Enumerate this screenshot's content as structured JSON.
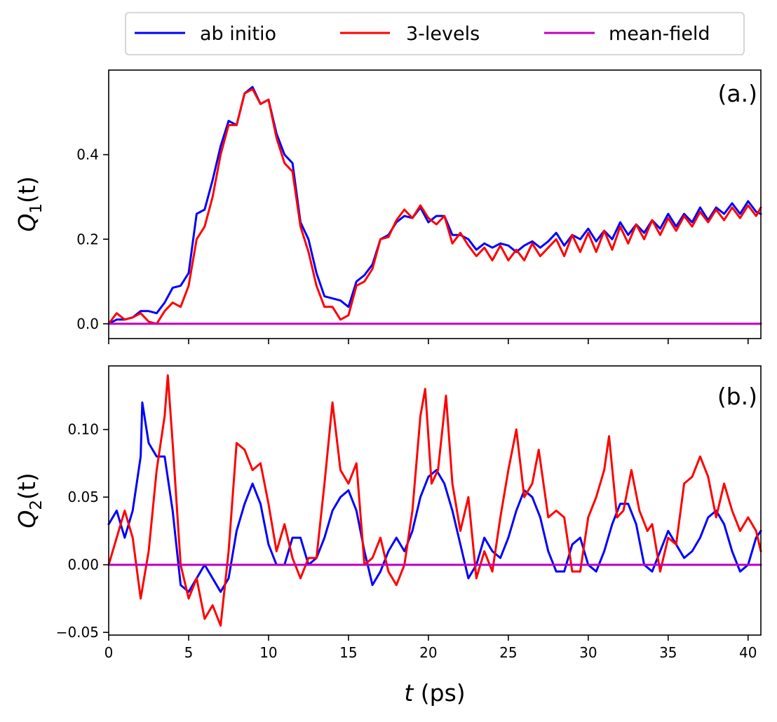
{
  "chart_data": [
    {
      "type": "line",
      "panel_label": "(a.)",
      "ylabel_base": "Q",
      "ylabel_sub": "1",
      "ylabel_arg": "(t)",
      "xlim": [
        0,
        40.8
      ],
      "ylim": [
        -0.035,
        0.6
      ],
      "yticks": [
        0.0,
        0.2,
        0.4
      ],
      "ytick_labels": [
        "0.0",
        "0.2",
        "0.4"
      ],
      "xticks": [
        0,
        5,
        10,
        15,
        20,
        25,
        30,
        35,
        40
      ],
      "series": [
        {
          "name": "ab initio",
          "color": "#0000ff",
          "x": [
            0,
            0.5,
            1,
            1.5,
            2,
            2.5,
            3,
            3.5,
            4,
            4.5,
            5,
            5.5,
            6,
            6.5,
            7,
            7.5,
            8,
            8.5,
            9,
            9.5,
            10,
            10.5,
            11,
            11.5,
            12,
            12.5,
            13,
            13.5,
            14,
            14.5,
            15,
            15.5,
            16,
            16.5,
            17,
            17.5,
            18,
            18.5,
            19,
            19.5,
            20,
            20.5,
            21,
            21.5,
            22,
            22.5,
            23,
            23.5,
            24,
            24.5,
            25,
            25.5,
            26,
            26.5,
            27,
            27.5,
            28,
            28.5,
            29,
            29.5,
            30,
            30.5,
            31,
            31.5,
            32,
            32.5,
            33,
            33.5,
            34,
            34.5,
            35,
            35.5,
            36,
            36.5,
            37,
            37.5,
            38,
            38.5,
            39,
            39.5,
            40,
            40.5,
            40.8
          ],
          "y": [
            0,
            0.01,
            0.01,
            0.015,
            0.03,
            0.03,
            0.025,
            0.05,
            0.085,
            0.09,
            0.12,
            0.26,
            0.27,
            0.34,
            0.42,
            0.48,
            0.47,
            0.545,
            0.56,
            0.52,
            0.53,
            0.45,
            0.4,
            0.38,
            0.24,
            0.2,
            0.12,
            0.065,
            0.06,
            0.055,
            0.04,
            0.1,
            0.115,
            0.14,
            0.2,
            0.21,
            0.24,
            0.255,
            0.25,
            0.275,
            0.24,
            0.255,
            0.255,
            0.21,
            0.21,
            0.2,
            0.175,
            0.19,
            0.18,
            0.19,
            0.185,
            0.17,
            0.185,
            0.195,
            0.18,
            0.195,
            0.215,
            0.185,
            0.21,
            0.2,
            0.225,
            0.195,
            0.22,
            0.2,
            0.24,
            0.21,
            0.235,
            0.215,
            0.245,
            0.225,
            0.26,
            0.23,
            0.26,
            0.24,
            0.275,
            0.245,
            0.275,
            0.26,
            0.285,
            0.26,
            0.29,
            0.265,
            0.26
          ]
        },
        {
          "name": "3-levels",
          "color": "#ff0000",
          "x": [
            0,
            0.5,
            1,
            1.5,
            2,
            2.5,
            3,
            3.5,
            4,
            4.5,
            5,
            5.5,
            6,
            6.5,
            7,
            7.5,
            8,
            8.5,
            9,
            9.5,
            10,
            10.5,
            11,
            11.5,
            12,
            12.5,
            13,
            13.5,
            14,
            14.5,
            15,
            15.5,
            16,
            16.5,
            17,
            17.5,
            18,
            18.5,
            19,
            19.5,
            20,
            20.5,
            21,
            21.5,
            22,
            22.5,
            23,
            23.5,
            24,
            24.5,
            25,
            25.5,
            26,
            26.5,
            27,
            27.5,
            28,
            28.5,
            29,
            29.5,
            30,
            30.5,
            31,
            31.5,
            32,
            32.5,
            33,
            33.5,
            34,
            34.5,
            35,
            35.5,
            36,
            36.5,
            37,
            37.5,
            38,
            38.5,
            39,
            39.5,
            40,
            40.5,
            40.8
          ],
          "y": [
            0,
            0.025,
            0.01,
            0.015,
            0.025,
            0.005,
            0.0,
            0.03,
            0.05,
            0.04,
            0.09,
            0.2,
            0.23,
            0.3,
            0.4,
            0.47,
            0.47,
            0.545,
            0.555,
            0.52,
            0.53,
            0.44,
            0.38,
            0.36,
            0.23,
            0.17,
            0.09,
            0.04,
            0.04,
            0.01,
            0.02,
            0.09,
            0.1,
            0.13,
            0.2,
            0.205,
            0.245,
            0.27,
            0.25,
            0.28,
            0.25,
            0.235,
            0.255,
            0.19,
            0.215,
            0.185,
            0.16,
            0.18,
            0.15,
            0.185,
            0.15,
            0.175,
            0.15,
            0.19,
            0.16,
            0.18,
            0.2,
            0.16,
            0.21,
            0.17,
            0.215,
            0.17,
            0.22,
            0.175,
            0.23,
            0.19,
            0.235,
            0.2,
            0.245,
            0.21,
            0.25,
            0.22,
            0.255,
            0.23,
            0.265,
            0.24,
            0.27,
            0.245,
            0.275,
            0.25,
            0.28,
            0.255,
            0.275
          ]
        },
        {
          "name": "mean-field",
          "color": "#bf00bf",
          "x": [
            0,
            40.8
          ],
          "y": [
            0,
            0
          ]
        }
      ]
    },
    {
      "type": "line",
      "panel_label": "(b.)",
      "ylabel_base": "Q",
      "ylabel_sub": "2",
      "ylabel_arg": "(t)",
      "xlabel_var": "t",
      "xlabel_unit": " (ps)",
      "xlim": [
        0,
        40.8
      ],
      "ylim": [
        -0.052,
        0.147
      ],
      "yticks": [
        -0.05,
        0.0,
        0.05,
        0.1
      ],
      "ytick_labels": [
        "−0.05",
        "0.00",
        "0.05",
        "0.10"
      ],
      "xticks": [
        0,
        5,
        10,
        15,
        20,
        25,
        30,
        35,
        40
      ],
      "xtick_labels": [
        "0",
        "5",
        "10",
        "15",
        "20",
        "25",
        "30",
        "35",
        "40"
      ],
      "series": [
        {
          "name": "ab initio",
          "color": "#0000ff",
          "x": [
            0,
            0.5,
            1,
            1.5,
            2,
            2.1,
            2.5,
            3,
            3.5,
            4,
            4.5,
            5,
            5.5,
            6,
            6.5,
            7,
            7.5,
            8,
            8.5,
            9,
            9.5,
            10,
            10.5,
            11,
            11.5,
            12,
            12.5,
            13,
            13.5,
            14,
            14.5,
            15,
            15.5,
            16,
            16.5,
            17,
            17.5,
            18,
            18.5,
            19,
            19.5,
            20,
            20.5,
            21,
            21.5,
            22,
            22.5,
            23,
            23.5,
            24,
            24.5,
            25,
            25.5,
            26,
            26.5,
            27,
            27.5,
            28,
            28.5,
            29,
            29.5,
            30,
            30.5,
            31,
            31.5,
            32,
            32.5,
            33,
            33.5,
            34,
            34.5,
            35,
            35.5,
            36,
            36.5,
            37,
            37.5,
            38,
            38.5,
            39,
            39.5,
            40,
            40.5,
            40.8
          ],
          "y": [
            0.03,
            0.04,
            0.02,
            0.04,
            0.08,
            0.12,
            0.09,
            0.08,
            0.08,
            0.04,
            -0.015,
            -0.02,
            -0.01,
            0.0,
            -0.01,
            -0.02,
            -0.01,
            0.025,
            0.045,
            0.06,
            0.045,
            0.015,
            0.0,
            0.0,
            0.02,
            0.02,
            0.0,
            0.005,
            0.02,
            0.04,
            0.05,
            0.055,
            0.04,
            0.01,
            -0.015,
            -0.005,
            0.01,
            0.02,
            0.01,
            0.025,
            0.05,
            0.065,
            0.07,
            0.06,
            0.04,
            0.015,
            -0.01,
            0.0,
            0.02,
            0.01,
            0.005,
            0.02,
            0.04,
            0.055,
            0.05,
            0.035,
            0.01,
            -0.005,
            -0.005,
            0.015,
            0.02,
            0.0,
            -0.005,
            0.01,
            0.03,
            0.045,
            0.045,
            0.03,
            0.0,
            -0.005,
            0.01,
            0.025,
            0.015,
            0.005,
            0.01,
            0.02,
            0.035,
            0.04,
            0.03,
            0.01,
            -0.005,
            0.0,
            0.02,
            0.025
          ]
        },
        {
          "name": "3-levels",
          "color": "#ff0000",
          "x": [
            0,
            0.5,
            1,
            1.5,
            2,
            2.5,
            3,
            3.5,
            3.7,
            4,
            4.5,
            5,
            5.5,
            6,
            6.5,
            7,
            7.5,
            8,
            8.5,
            9,
            9.5,
            10,
            10.5,
            11,
            11.5,
            12,
            12.5,
            13,
            13.5,
            14,
            14.5,
            15,
            15.5,
            16,
            16.5,
            17,
            17.5,
            18,
            18.5,
            19,
            19.5,
            19.8,
            20.2,
            20.6,
            21.1,
            21.5,
            22,
            22.5,
            23,
            23.5,
            24,
            24.5,
            25,
            25.5,
            26,
            26.5,
            26.9,
            27.5,
            28,
            28.5,
            29,
            29.5,
            30,
            30.5,
            31,
            31.3,
            31.8,
            32.2,
            32.7,
            33.2,
            33.7,
            34,
            34.5,
            35,
            35.5,
            36,
            36.5,
            37,
            37.5,
            38,
            38.5,
            39,
            39.5,
            40,
            40.5,
            40.8
          ],
          "y": [
            0.0,
            0.02,
            0.04,
            0.02,
            -0.025,
            0.01,
            0.07,
            0.11,
            0.14,
            0.09,
            0.0,
            -0.025,
            -0.01,
            -0.04,
            -0.03,
            -0.045,
            0.01,
            0.09,
            0.085,
            0.07,
            0.075,
            0.045,
            0.01,
            0.03,
            0.005,
            -0.01,
            0.005,
            0.005,
            0.06,
            0.12,
            0.07,
            0.06,
            0.075,
            0.0,
            0.005,
            0.02,
            -0.005,
            -0.015,
            0.0,
            0.04,
            0.11,
            0.13,
            0.06,
            0.07,
            0.125,
            0.06,
            0.025,
            0.05,
            -0.01,
            0.01,
            -0.005,
            0.035,
            0.07,
            0.1,
            0.05,
            0.06,
            0.085,
            0.035,
            0.04,
            0.035,
            -0.005,
            -0.005,
            0.035,
            0.05,
            0.07,
            0.095,
            0.035,
            0.04,
            0.07,
            0.04,
            0.025,
            0.03,
            -0.005,
            0.02,
            0.015,
            0.06,
            0.065,
            0.08,
            0.065,
            0.035,
            0.06,
            0.04,
            0.025,
            0.035,
            0.025,
            0.01
          ]
        },
        {
          "name": "mean-field",
          "color": "#bf00bf",
          "x": [
            0,
            40.8
          ],
          "y": [
            0,
            0
          ]
        }
      ]
    }
  ],
  "legend": {
    "items": [
      {
        "label": "ab initio",
        "color": "#0000ff"
      },
      {
        "label": "3-levels",
        "color": "#ff0000"
      },
      {
        "label": "mean-field",
        "color": "#bf00bf"
      }
    ]
  }
}
